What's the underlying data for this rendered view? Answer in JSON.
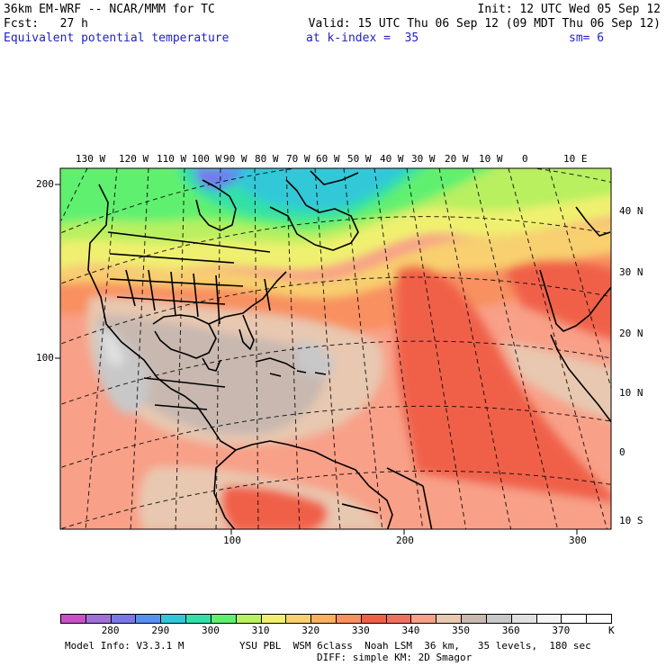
{
  "header": {
    "model_title": "36km EM-WRF -- NCAR/MMM for TC",
    "init": "Init: 12 UTC Wed 05 Sep 12",
    "fcst": "Fcst:   27 h",
    "valid": "Valid: 15 UTC Thu 06 Sep 12 (09 MDT Thu 06 Sep 12)",
    "field_name": "Equivalent potential temperature",
    "level": "at k-index =  35",
    "smoothing": "sm= 6"
  },
  "map": {
    "top_longitudes": [
      "130 W",
      "120 W",
      "110 W",
      "100 W",
      "90 W",
      "80 W",
      "70 W",
      "60 W",
      "50 W",
      "40 W",
      "30 W",
      "20 W",
      "10 W",
      "0",
      "10 E"
    ],
    "right_latitudes": [
      "40 N",
      "30 N",
      "20 N",
      "10 N",
      "0",
      "10 S"
    ],
    "left_grid_ticks": [
      "200",
      "100"
    ],
    "bottom_grid_ticks": [
      "100",
      "200",
      "300"
    ]
  },
  "colorbar": {
    "colors": [
      "#c850c8",
      "#a070d8",
      "#7878e8",
      "#5890f0",
      "#30c8d8",
      "#30e0a8",
      "#60f070",
      "#b8f060",
      "#f0f070",
      "#f8d070",
      "#f8b060",
      "#f89060",
      "#f06048",
      "#f07060",
      "#f8a088",
      "#e8c8b0",
      "#c8b8b0",
      "#c8c8c8",
      "#e0e0e0",
      "#f4f4f4",
      "#ffffff",
      "#ffffff"
    ],
    "tick_labels": [
      "280",
      "290",
      "300",
      "310",
      "320",
      "330",
      "340",
      "350",
      "360",
      "370"
    ],
    "unit": "K"
  },
  "footer": {
    "model_info": "Model Info: V3.3.1 M",
    "physics": "YSU PBL  WSM 6class  Noah LSM  36 km,   35 levels,  180 sec",
    "diffusion": "DIFF: simple KM: 2D Smagor"
  }
}
